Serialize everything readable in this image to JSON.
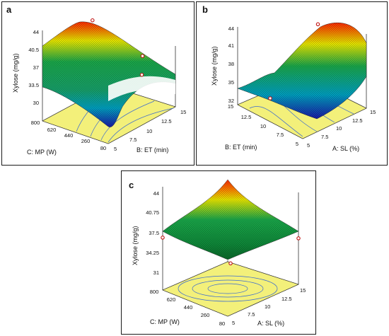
{
  "chart_data": [
    {
      "panel": "a",
      "type": "surface",
      "zlabel": "Xylose (mg/g)",
      "z_ticks": [
        "44",
        "40.5",
        "37",
        "33.5",
        "30"
      ],
      "zlim": [
        30,
        44
      ],
      "x_axis": {
        "label": "B: ET (min)",
        "ticks": [
          "5",
          "7.5",
          "10",
          "12.5",
          "15"
        ],
        "range": [
          5,
          15
        ]
      },
      "y_axis": {
        "label": "C: MP (W)",
        "ticks": [
          "80",
          "260",
          "440",
          "620",
          "800"
        ],
        "range": [
          80,
          800
        ]
      },
      "design_points": [
        {
          "x": 10,
          "y": 80,
          "z": 37.8
        },
        {
          "x": 15,
          "y": 440,
          "z": 36.1
        },
        {
          "x": 10,
          "y": 620,
          "z": 43.6
        }
      ],
      "colors": [
        "#1a1aa8",
        "#00b8c0",
        "#1aa84a",
        "#e8e800",
        "#ff2a00",
        "#ffffa0"
      ]
    },
    {
      "panel": "b",
      "type": "surface",
      "zlabel": "Xylose (mg/g)",
      "z_ticks": [
        "44",
        "41",
        "38",
        "35",
        "32"
      ],
      "zlim": [
        32,
        44
      ],
      "x_axis": {
        "label": "A: SL (%)",
        "ticks": [
          "5",
          "7.5",
          "10",
          "12.5",
          "15"
        ],
        "range": [
          5,
          15
        ]
      },
      "y_axis": {
        "label": "B: ET (min)",
        "ticks": [
          "5",
          "7.5",
          "10",
          "12.5",
          "15"
        ],
        "range": [
          5,
          15
        ]
      },
      "design_points": [
        {
          "x": 5,
          "y": 10,
          "z": 35.6
        },
        {
          "x": 12.5,
          "y": 10,
          "z": 43.5
        }
      ],
      "colors": [
        "#1a1aa8",
        "#00b8c0",
        "#1aa84a",
        "#e8e800",
        "#ff2a00",
        "#ffffa0"
      ]
    },
    {
      "panel": "c",
      "type": "surface",
      "zlabel": "Xylose (mg/g)",
      "z_ticks": [
        "44",
        "40.75",
        "37.5",
        "34.25",
        "31"
      ],
      "zlim": [
        31,
        44
      ],
      "x_axis": {
        "label": "A: SL (%)",
        "ticks": [
          "5",
          "7.5",
          "10",
          "12.5",
          "15"
        ],
        "range": [
          5,
          15
        ]
      },
      "y_axis": {
        "label": "C: MP (W)",
        "ticks": [
          "80",
          "260",
          "440",
          "620",
          "800"
        ],
        "range": [
          80,
          800
        ]
      },
      "design_points": [
        {
          "x": 5,
          "y": 800,
          "z": 37.6
        },
        {
          "x": 15,
          "y": 80,
          "z": 36.8
        },
        {
          "x": 10,
          "y": 440,
          "z": 34.0
        }
      ],
      "colors": [
        "#1a1aa8",
        "#00b8c0",
        "#1aa84a",
        "#e8e800",
        "#ff2a00",
        "#ffffa0"
      ]
    }
  ]
}
